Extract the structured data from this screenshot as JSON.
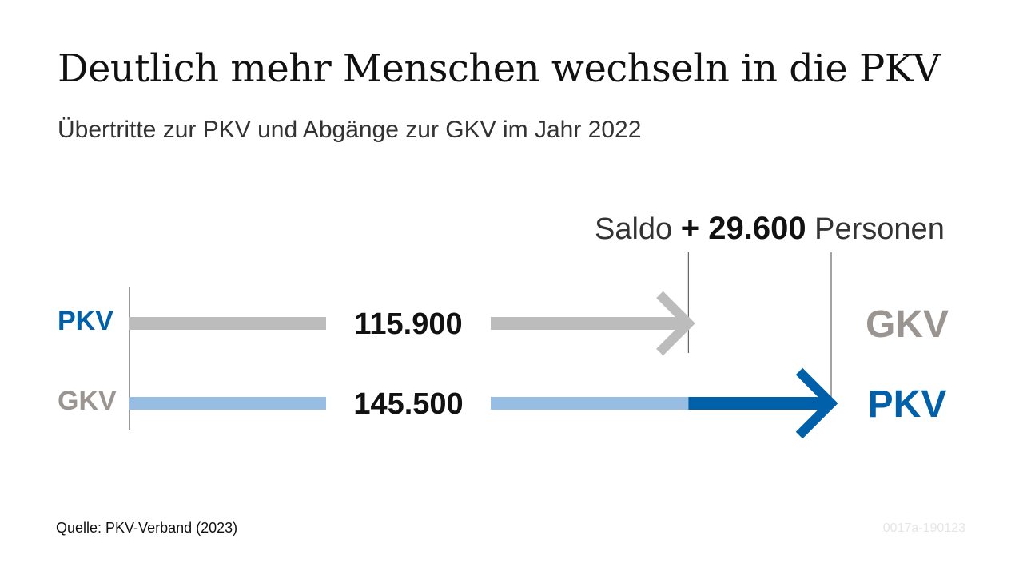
{
  "colors": {
    "gray": "#bcbcbc",
    "gray_dark": "#9a9590",
    "blue": "#0060aa",
    "blue_light": "#97bde2",
    "text": "#111111"
  },
  "footer": {
    "source": "Quelle: PKV-Verband (2023)",
    "code": "0017a-190123"
  },
  "chart_data": {
    "type": "bar",
    "title": "Deutlich mehr Menschen wechseln in die PKV",
    "subtitle": "Übertritte zur PKV und Abgänge zur GKV im Jahr 2022",
    "saldo": {
      "prefix": "Saldo",
      "value_label": "+ 29.600",
      "suffix": "Personen",
      "value": 29600
    },
    "series": [
      {
        "from": "PKV",
        "to": "GKV",
        "value": 115900,
        "label": "115.900",
        "from_color": "#0060aa",
        "to_color": "#9a9590",
        "bar_color": "#bcbcbc"
      },
      {
        "from": "GKV",
        "to": "PKV",
        "value": 145500,
        "label": "145.500",
        "from_color": "#9a9590",
        "to_color": "#0060aa",
        "bar_color": "#97bde2",
        "excess_color": "#0060aa"
      }
    ]
  }
}
